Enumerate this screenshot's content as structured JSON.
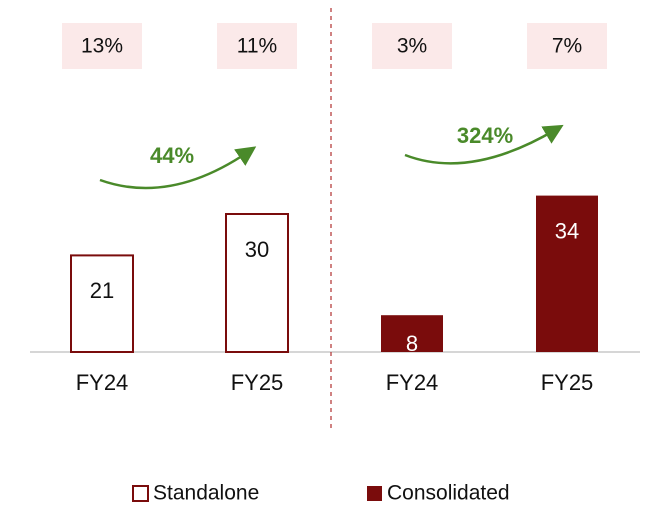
{
  "chart_data": [
    {
      "type": "bar",
      "categories": [
        "FY24",
        "FY25"
      ],
      "series": [
        {
          "name": "Standalone",
          "color": "#7a0c0c",
          "style": "outline",
          "values": [
            21,
            30
          ]
        }
      ],
      "margins": [
        13,
        11
      ],
      "margin_labels": [
        "13%",
        "11%"
      ],
      "growth": 44,
      "growth_label": "44%",
      "ylim": [
        0,
        75
      ]
    },
    {
      "type": "bar",
      "categories": [
        "FY24",
        "FY25"
      ],
      "series": [
        {
          "name": "Consolidated",
          "color": "#7a0c0c",
          "style": "filled",
          "values": [
            8,
            34
          ]
        }
      ],
      "margins": [
        3,
        7
      ],
      "margin_labels": [
        "3%",
        "7%"
      ],
      "growth": 324,
      "growth_label": "324%",
      "ylim": [
        0,
        75
      ]
    }
  ]
}
